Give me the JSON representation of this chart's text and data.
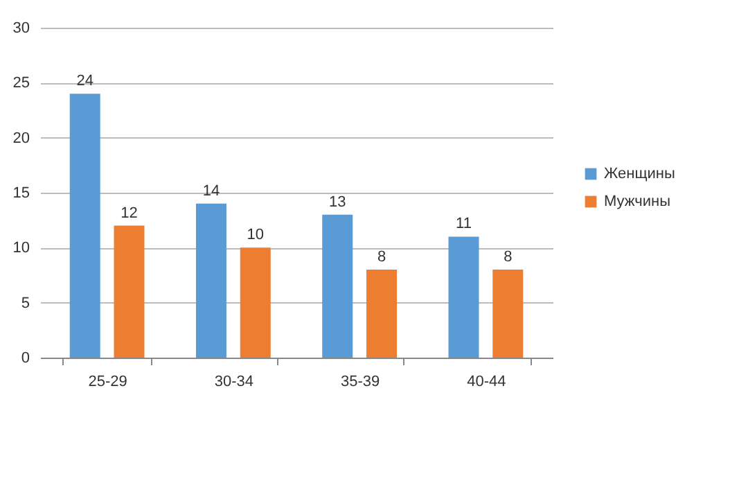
{
  "chart_data": {
    "type": "bar",
    "categories": [
      "25-29",
      "30-34",
      "35-39",
      "40-44"
    ],
    "series": [
      {
        "name": "Женщины",
        "color": "#5b9bd5",
        "values": [
          24,
          14,
          13,
          11
        ]
      },
      {
        "name": "Мужчины",
        "color": "#ed7d31",
        "values": [
          12,
          10,
          8,
          8
        ]
      }
    ],
    "ylim": [
      0,
      30
    ],
    "yticks": [
      0,
      5,
      10,
      15,
      20,
      25,
      30
    ],
    "grid": "y",
    "legend": "right",
    "data_labels": true
  }
}
